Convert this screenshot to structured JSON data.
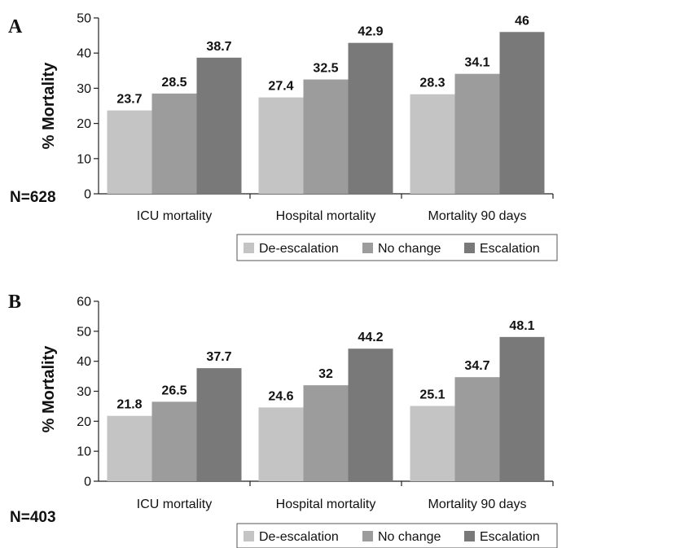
{
  "chart_data": [
    {
      "panel": "A",
      "type": "bar",
      "categories": [
        "ICU mortality",
        "Hospital mortality",
        "Mortality 90 days"
      ],
      "series": [
        {
          "name": "De-escalation",
          "values": [
            23.7,
            27.4,
            28.3
          ],
          "color": "#c4c4c4"
        },
        {
          "name": "No change",
          "values": [
            28.5,
            32.5,
            34.1
          ],
          "color": "#9c9c9c"
        },
        {
          "name": "Escalation",
          "values": [
            38.7,
            42.9,
            46
          ],
          "color": "#797979"
        }
      ],
      "value_labels": [
        [
          "23.7",
          "27.4",
          "28.3"
        ],
        [
          "28.5",
          "32.5",
          "34.1"
        ],
        [
          "38.7",
          "42.9",
          "46"
        ]
      ],
      "ylabel": "% Mortality",
      "ylim": [
        0,
        50
      ],
      "yticks": [
        0,
        10,
        20,
        30,
        40,
        50
      ],
      "note": "N=628",
      "legend": "bottom",
      "grid": false
    },
    {
      "panel": "B",
      "type": "bar",
      "categories": [
        "ICU mortality",
        "Hospital mortality",
        "Mortality 90 days"
      ],
      "series": [
        {
          "name": "De-escalation",
          "values": [
            21.8,
            24.6,
            25.1
          ],
          "color": "#c4c4c4"
        },
        {
          "name": "No change",
          "values": [
            26.5,
            32,
            34.7
          ],
          "color": "#9c9c9c"
        },
        {
          "name": "Escalation",
          "values": [
            37.7,
            44.2,
            48.1
          ],
          "color": "#797979"
        }
      ],
      "value_labels": [
        [
          "21.8",
          "24.6",
          "25.1"
        ],
        [
          "26.5",
          "32",
          "34.7"
        ],
        [
          "37.7",
          "44.2",
          "48.1"
        ]
      ],
      "ylabel": "% Mortality",
      "ylim": [
        0,
        60
      ],
      "yticks": [
        0,
        10,
        20,
        30,
        40,
        50,
        60
      ],
      "note": "N=403",
      "legend": "bottom",
      "grid": false
    }
  ]
}
